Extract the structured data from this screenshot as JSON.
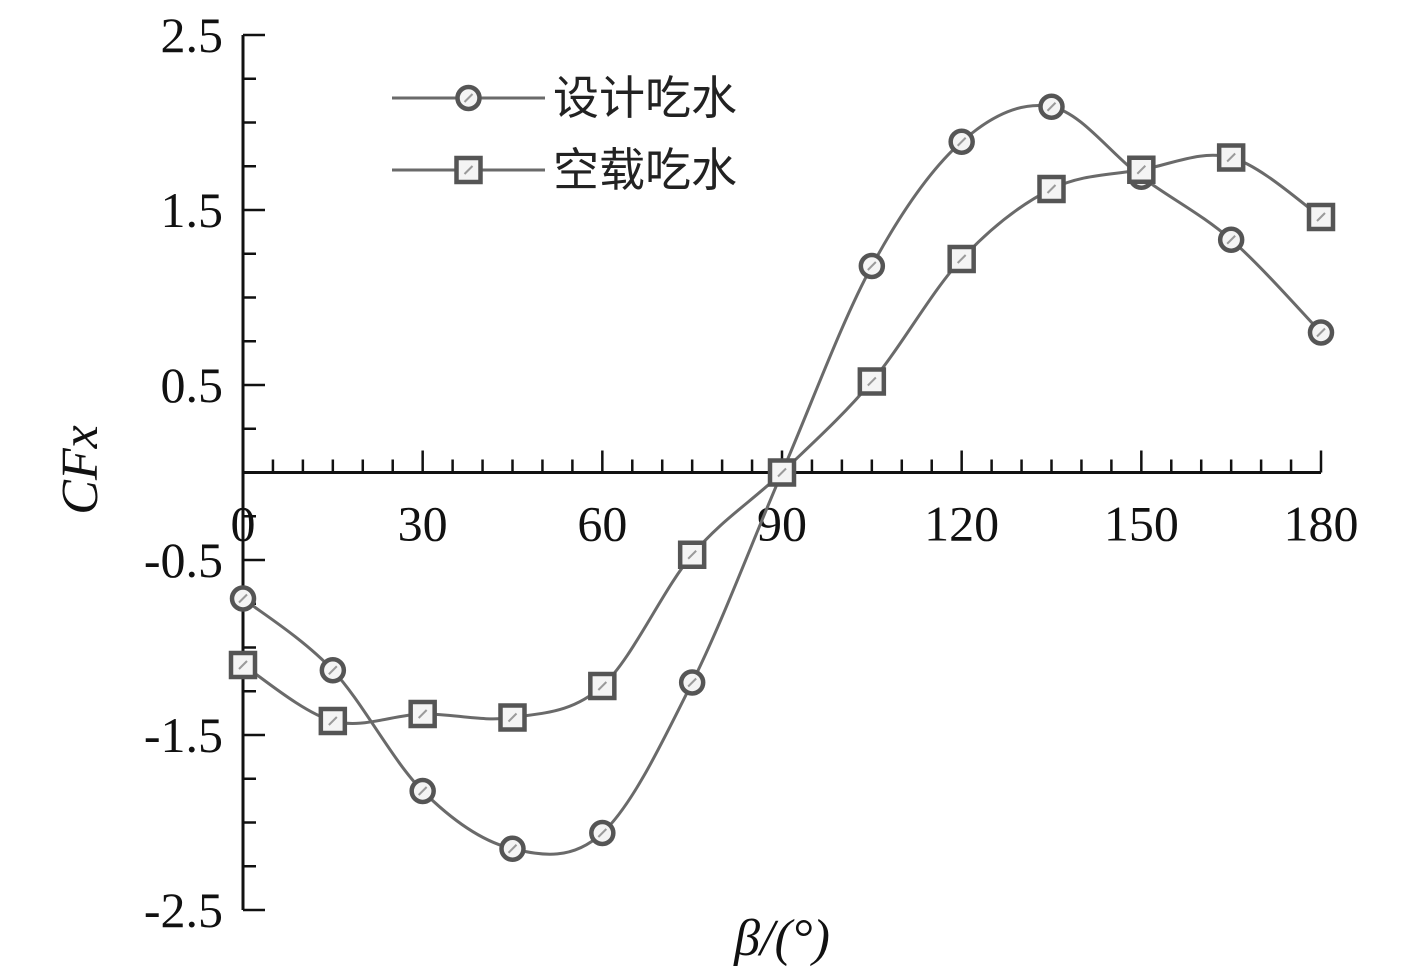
{
  "chart_data": {
    "type": "line",
    "title": "",
    "xlabel": "β/(°)",
    "ylabel": "CFx",
    "xlim": [
      0,
      180
    ],
    "ylim": [
      -2.5,
      2.5
    ],
    "x_ticks": [
      0,
      30,
      60,
      90,
      120,
      150,
      180
    ],
    "x_tick_labels": [
      "0",
      "30",
      "60",
      "90",
      "120",
      "150",
      "180"
    ],
    "y_ticks": [
      2.5,
      1.5,
      0.5,
      -0.5,
      -1.5,
      -2.5
    ],
    "y_tick_labels": [
      "2.5",
      "1.5",
      "0.5",
      "-0.5",
      "-1.5",
      "-2.5"
    ],
    "x_axis_crosses_y_at": 0,
    "legend_position": "top-left",
    "grid": false,
    "x": [
      0,
      15,
      30,
      45,
      60,
      75,
      90,
      105,
      120,
      135,
      150,
      165,
      180
    ],
    "series": [
      {
        "name": "设计吃水",
        "marker": "circle",
        "color": "#555555",
        "values": [
          -0.72,
          -1.13,
          -1.82,
          -2.15,
          -2.06,
          -1.2,
          0.0,
          1.18,
          1.89,
          2.09,
          1.69,
          1.33,
          0.8
        ]
      },
      {
        "name": "空载吃水",
        "marker": "square",
        "color": "#555555",
        "values": [
          -1.1,
          -1.42,
          -1.38,
          -1.4,
          -1.22,
          -0.47,
          0.0,
          0.52,
          1.22,
          1.62,
          1.73,
          1.8,
          1.46
        ]
      }
    ]
  }
}
